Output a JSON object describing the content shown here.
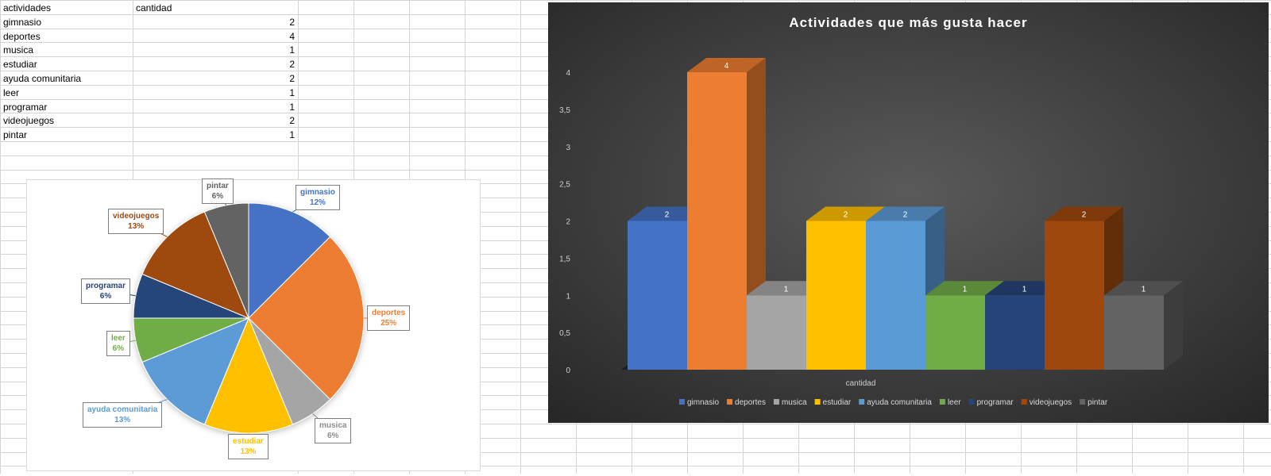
{
  "sheet": {
    "header": {
      "col_a": "actividades",
      "col_b": "cantidad"
    },
    "rows": [
      {
        "label": "gimnasio",
        "value": 2
      },
      {
        "label": "deportes",
        "value": 4
      },
      {
        "label": "musica",
        "value": 1
      },
      {
        "label": "estudiar",
        "value": 2
      },
      {
        "label": "ayuda comunitaria",
        "value": 2
      },
      {
        "label": "leer",
        "value": 1
      },
      {
        "label": "programar",
        "value": 1
      },
      {
        "label": "videojuegos",
        "value": 2
      },
      {
        "label": "pintar",
        "value": 1
      }
    ]
  },
  "colors": {
    "gimnasio": "#4472c4",
    "deportes": "#ed7d31",
    "musica": "#a5a5a5",
    "estudiar": "#ffc000",
    "ayuda comunitaria": "#5b9bd5",
    "leer": "#70ad47",
    "programar": "#264478",
    "videojuegos": "#9e480e",
    "pintar": "#636363"
  },
  "chart_data": [
    {
      "type": "pie",
      "categories": [
        "gimnasio",
        "deportes",
        "musica",
        "estudiar",
        "ayuda comunitaria",
        "leer",
        "programar",
        "videojuegos",
        "pintar"
      ],
      "values": [
        2,
        4,
        1,
        2,
        2,
        1,
        1,
        2,
        1
      ],
      "data_labels": [
        {
          "name": "gimnasio",
          "pct": "12%"
        },
        {
          "name": "deportes",
          "pct": "25%"
        },
        {
          "name": "musica",
          "pct": "6%"
        },
        {
          "name": "estudiar",
          "pct": "13%"
        },
        {
          "name": "ayuda comunitaria",
          "pct": "13%"
        },
        {
          "name": "leer",
          "pct": "6%"
        },
        {
          "name": "programar",
          "pct": "6%"
        },
        {
          "name": "videojuegos",
          "pct": "13%"
        },
        {
          "name": "pintar",
          "pct": "6%"
        }
      ]
    },
    {
      "type": "bar",
      "title": "Actividades que más gusta hacer",
      "categories": [
        "cantidad"
      ],
      "xlabel": "cantidad",
      "ylim": [
        0,
        4
      ],
      "yticks": [
        "0",
        "0,5",
        "1",
        "1,5",
        "2",
        "2,5",
        "3",
        "3,5",
        "4"
      ],
      "series": [
        {
          "name": "gimnasio",
          "values": [
            2
          ]
        },
        {
          "name": "deportes",
          "values": [
            4
          ]
        },
        {
          "name": "musica",
          "values": [
            1
          ]
        },
        {
          "name": "estudiar",
          "values": [
            2
          ]
        },
        {
          "name": "ayuda comunitaria",
          "values": [
            2
          ]
        },
        {
          "name": "leer",
          "values": [
            1
          ]
        },
        {
          "name": "programar",
          "values": [
            1
          ]
        },
        {
          "name": "videojuegos",
          "values": [
            2
          ]
        },
        {
          "name": "pintar",
          "values": [
            1
          ]
        }
      ],
      "legend": "bottom",
      "background": "#3a3a3a",
      "grid": false
    }
  ]
}
